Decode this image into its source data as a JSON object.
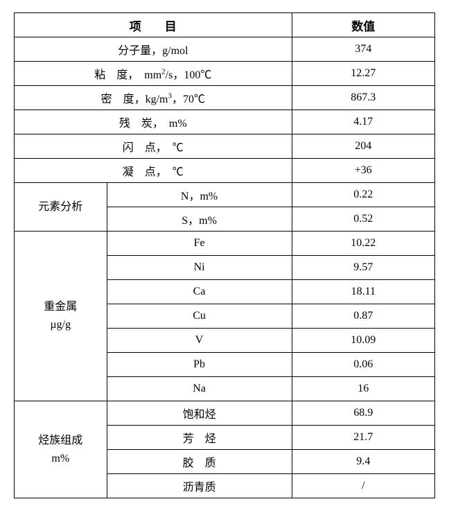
{
  "table": {
    "type": "table",
    "border_color": "#000000",
    "background_color": "#ffffff",
    "text_color": "#000000",
    "font_family": "SimSun",
    "header_fontsize_pt": 13,
    "body_fontsize_pt": 12,
    "columns": [
      "项目",
      "数值"
    ],
    "header": {
      "item_gap": "项　　目",
      "value": "数值"
    },
    "simple_rows": [
      {
        "item_html": "分子量，g/mol",
        "value": "374"
      },
      {
        "item_html": "粘　度，　mm<sup>2</sup>/s，100℃",
        "value": "12.27"
      },
      {
        "item_html": "密　度，kg/m<sup>3</sup>，70℃",
        "value": "867.3"
      },
      {
        "item_html": "残　炭，　m%",
        "value": "4.17"
      },
      {
        "item_html": "闪　点，　℃",
        "value": "204"
      },
      {
        "item_html": "凝　点，　℃",
        "value": "+36"
      }
    ],
    "element_analysis": {
      "group": "元素分析",
      "rows": [
        {
          "label": "N，m%",
          "value": "0.22"
        },
        {
          "label": "S，m%",
          "value": "0.52"
        }
      ]
    },
    "heavy_metals": {
      "group_line1": "重金属",
      "group_line2": "µg/g",
      "rows": [
        {
          "label": "Fe",
          "value": "10.22"
        },
        {
          "label": "Ni",
          "value": "9.57"
        },
        {
          "label": "Ca",
          "value": "18.11"
        },
        {
          "label": "Cu",
          "value": "0.87"
        },
        {
          "label": "V",
          "value": "10.09"
        },
        {
          "label": "Pb",
          "value": "0.06"
        },
        {
          "label": "Na",
          "value": "16"
        }
      ]
    },
    "hydrocarbons": {
      "group_line1": "烃族组成",
      "group_line2": "m%",
      "rows": [
        {
          "label": "饱和烃",
          "value": "68.9"
        },
        {
          "label": "芳　烃",
          "value": "21.7"
        },
        {
          "label": "胶　质",
          "value": "9.4"
        },
        {
          "label": "沥青质",
          "value": "/"
        }
      ]
    }
  }
}
